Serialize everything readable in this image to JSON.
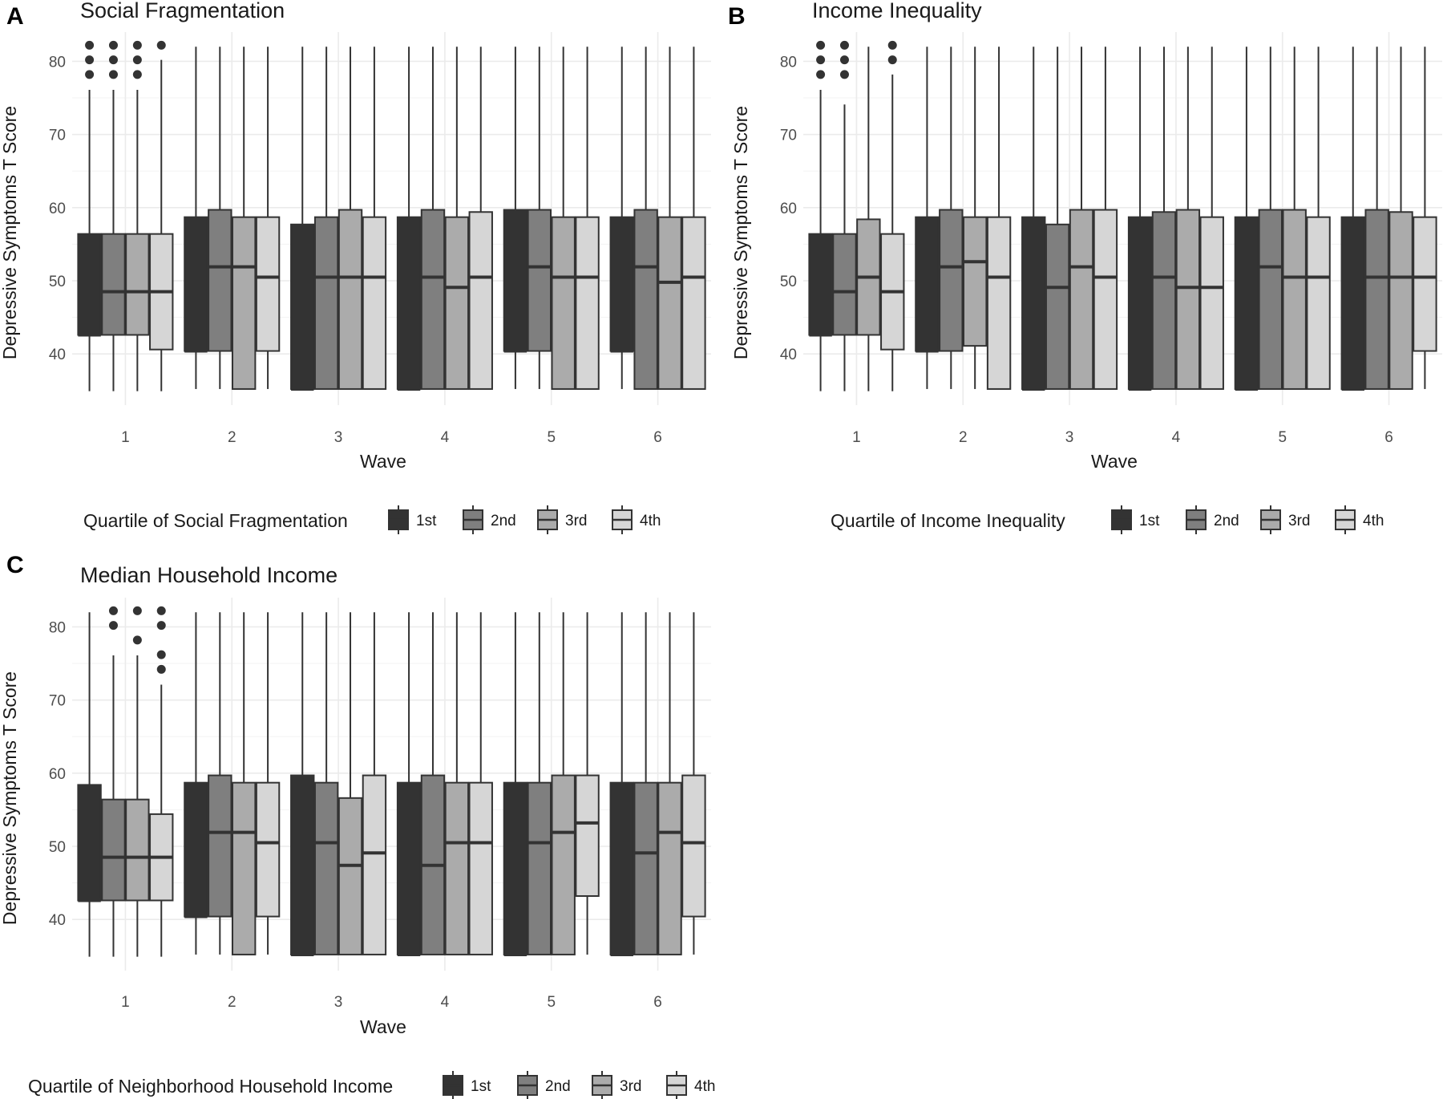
{
  "chart_data": [
    {
      "type": "boxplot",
      "panel": "A",
      "title": "Social Fragmentation",
      "xlabel": "Wave",
      "ylabel": "Depressive Symptoms T Score",
      "categories": [
        "1",
        "2",
        "3",
        "4",
        "5",
        "6"
      ],
      "yticks": [
        40,
        50,
        60,
        70,
        80
      ],
      "ylim": [
        33,
        84
      ],
      "legend_title": "Quartile of Social Fragmentation",
      "grid": true,
      "series": [
        {
          "name": "1st",
          "color": "#333333",
          "boxes": [
            {
              "whisker_low": 34.9,
              "q1": 42.6,
              "median": 42.6,
              "q3": 56.4,
              "whisker_high": 76.1,
              "outliers": [
                78.2,
                80.2,
                82.2
              ]
            },
            {
              "whisker_low": 35.2,
              "q1": 40.4,
              "median": 40.4,
              "q3": 58.7,
              "whisker_high": 82.0,
              "outliers": []
            },
            {
              "whisker_low": 35.2,
              "q1": 35.2,
              "median": 35.2,
              "q3": 57.7,
              "whisker_high": 82.0,
              "outliers": []
            },
            {
              "whisker_low": 35.2,
              "q1": 35.2,
              "median": 35.2,
              "q3": 58.7,
              "whisker_high": 82.0,
              "outliers": []
            },
            {
              "whisker_low": 35.2,
              "q1": 40.4,
              "median": 40.4,
              "q3": 59.7,
              "whisker_high": 82.0,
              "outliers": []
            },
            {
              "whisker_low": 35.2,
              "q1": 40.4,
              "median": 40.4,
              "q3": 58.7,
              "whisker_high": 82.0,
              "outliers": []
            }
          ]
        },
        {
          "name": "2nd",
          "color": "#7f7f7f",
          "boxes": [
            {
              "whisker_low": 34.9,
              "q1": 42.6,
              "median": 48.5,
              "q3": 56.4,
              "whisker_high": 76.1,
              "outliers": [
                78.2,
                80.2,
                82.2
              ]
            },
            {
              "whisker_low": 35.2,
              "q1": 40.4,
              "median": 51.9,
              "q3": 59.7,
              "whisker_high": 82.0,
              "outliers": []
            },
            {
              "whisker_low": 35.2,
              "q1": 35.2,
              "median": 50.5,
              "q3": 58.7,
              "whisker_high": 82.0,
              "outliers": []
            },
            {
              "whisker_low": 35.2,
              "q1": 35.2,
              "median": 50.5,
              "q3": 59.7,
              "whisker_high": 82.0,
              "outliers": []
            },
            {
              "whisker_low": 35.2,
              "q1": 40.4,
              "median": 51.9,
              "q3": 59.7,
              "whisker_high": 82.0,
              "outliers": []
            },
            {
              "whisker_low": 35.2,
              "q1": 35.2,
              "median": 51.9,
              "q3": 59.7,
              "whisker_high": 82.0,
              "outliers": []
            }
          ]
        },
        {
          "name": "3rd",
          "color": "#ababab",
          "boxes": [
            {
              "whisker_low": 34.9,
              "q1": 42.6,
              "median": 48.5,
              "q3": 56.4,
              "whisker_high": 76.1,
              "outliers": [
                78.2,
                80.2,
                82.2
              ]
            },
            {
              "whisker_low": 35.2,
              "q1": 35.2,
              "median": 51.9,
              "q3": 58.7,
              "whisker_high": 82.0,
              "outliers": []
            },
            {
              "whisker_low": 35.2,
              "q1": 35.2,
              "median": 50.5,
              "q3": 59.7,
              "whisker_high": 82.0,
              "outliers": []
            },
            {
              "whisker_low": 35.2,
              "q1": 35.2,
              "median": 49.1,
              "q3": 58.7,
              "whisker_high": 82.0,
              "outliers": []
            },
            {
              "whisker_low": 35.2,
              "q1": 35.2,
              "median": 50.5,
              "q3": 58.7,
              "whisker_high": 82.0,
              "outliers": []
            },
            {
              "whisker_low": 35.2,
              "q1": 35.2,
              "median": 49.8,
              "q3": 58.7,
              "whisker_high": 82.0,
              "outliers": []
            }
          ]
        },
        {
          "name": "4th",
          "color": "#d6d6d6",
          "boxes": [
            {
              "whisker_low": 34.9,
              "q1": 40.6,
              "median": 48.5,
              "q3": 56.4,
              "whisker_high": 80.2,
              "outliers": [
                82.2
              ]
            },
            {
              "whisker_low": 35.2,
              "q1": 40.4,
              "median": 50.5,
              "q3": 58.7,
              "whisker_high": 82.0,
              "outliers": []
            },
            {
              "whisker_low": 35.2,
              "q1": 35.2,
              "median": 50.5,
              "q3": 58.7,
              "whisker_high": 82.0,
              "outliers": []
            },
            {
              "whisker_low": 35.2,
              "q1": 35.2,
              "median": 50.5,
              "q3": 59.4,
              "whisker_high": 82.0,
              "outliers": []
            },
            {
              "whisker_low": 35.2,
              "q1": 35.2,
              "median": 50.5,
              "q3": 58.7,
              "whisker_high": 82.0,
              "outliers": []
            },
            {
              "whisker_low": 35.2,
              "q1": 35.2,
              "median": 50.5,
              "q3": 58.7,
              "whisker_high": 82.0,
              "outliers": []
            }
          ]
        }
      ]
    },
    {
      "type": "boxplot",
      "panel": "B",
      "title": "Income Inequality",
      "xlabel": "Wave",
      "ylabel": "Depressive Symptoms T Score",
      "categories": [
        "1",
        "2",
        "3",
        "4",
        "5",
        "6"
      ],
      "yticks": [
        40,
        50,
        60,
        70,
        80
      ],
      "ylim": [
        33,
        84
      ],
      "legend_title": "Quartile of Income Inequality",
      "grid": true,
      "series": [
        {
          "name": "1st",
          "color": "#333333",
          "boxes": [
            {
              "whisker_low": 34.9,
              "q1": 42.6,
              "median": 42.6,
              "q3": 56.4,
              "whisker_high": 76.1,
              "outliers": [
                78.2,
                80.2,
                82.2
              ]
            },
            {
              "whisker_low": 35.2,
              "q1": 40.4,
              "median": 40.4,
              "q3": 58.7,
              "whisker_high": 82.0,
              "outliers": []
            },
            {
              "whisker_low": 35.2,
              "q1": 35.2,
              "median": 35.2,
              "q3": 58.7,
              "whisker_high": 82.0,
              "outliers": []
            },
            {
              "whisker_low": 35.2,
              "q1": 35.2,
              "median": 35.2,
              "q3": 58.7,
              "whisker_high": 82.0,
              "outliers": []
            },
            {
              "whisker_low": 35.2,
              "q1": 35.2,
              "median": 35.2,
              "q3": 58.7,
              "whisker_high": 82.0,
              "outliers": []
            },
            {
              "whisker_low": 35.2,
              "q1": 35.2,
              "median": 35.2,
              "q3": 58.7,
              "whisker_high": 82.0,
              "outliers": []
            }
          ]
        },
        {
          "name": "2nd",
          "color": "#7f7f7f",
          "boxes": [
            {
              "whisker_low": 34.9,
              "q1": 42.6,
              "median": 48.5,
              "q3": 56.4,
              "whisker_high": 74.1,
              "outliers": [
                78.2,
                80.2,
                82.2
              ]
            },
            {
              "whisker_low": 35.2,
              "q1": 40.4,
              "median": 51.9,
              "q3": 59.7,
              "whisker_high": 82.0,
              "outliers": []
            },
            {
              "whisker_low": 35.2,
              "q1": 35.2,
              "median": 49.1,
              "q3": 57.7,
              "whisker_high": 82.0,
              "outliers": []
            },
            {
              "whisker_low": 35.2,
              "q1": 35.2,
              "median": 50.5,
              "q3": 59.4,
              "whisker_high": 82.0,
              "outliers": []
            },
            {
              "whisker_low": 35.2,
              "q1": 35.2,
              "median": 51.9,
              "q3": 59.7,
              "whisker_high": 82.0,
              "outliers": []
            },
            {
              "whisker_low": 35.2,
              "q1": 35.2,
              "median": 50.5,
              "q3": 59.7,
              "whisker_high": 82.0,
              "outliers": []
            }
          ]
        },
        {
          "name": "3rd",
          "color": "#ababab",
          "boxes": [
            {
              "whisker_low": 34.9,
              "q1": 42.6,
              "median": 50.5,
              "q3": 58.4,
              "whisker_high": 82.0,
              "outliers": []
            },
            {
              "whisker_low": 35.2,
              "q1": 41.1,
              "median": 52.6,
              "q3": 58.7,
              "whisker_high": 82.0,
              "outliers": []
            },
            {
              "whisker_low": 35.2,
              "q1": 35.2,
              "median": 51.9,
              "q3": 59.7,
              "whisker_high": 82.0,
              "outliers": []
            },
            {
              "whisker_low": 35.2,
              "q1": 35.2,
              "median": 49.1,
              "q3": 59.7,
              "whisker_high": 82.0,
              "outliers": []
            },
            {
              "whisker_low": 35.2,
              "q1": 35.2,
              "median": 50.5,
              "q3": 59.7,
              "whisker_high": 82.0,
              "outliers": []
            },
            {
              "whisker_low": 35.2,
              "q1": 35.2,
              "median": 50.5,
              "q3": 59.4,
              "whisker_high": 82.0,
              "outliers": []
            }
          ]
        },
        {
          "name": "4th",
          "color": "#d6d6d6",
          "boxes": [
            {
              "whisker_low": 34.9,
              "q1": 40.6,
              "median": 48.5,
              "q3": 56.4,
              "whisker_high": 78.2,
              "outliers": [
                80.2,
                82.2
              ]
            },
            {
              "whisker_low": 35.2,
              "q1": 35.2,
              "median": 50.5,
              "q3": 58.7,
              "whisker_high": 82.0,
              "outliers": []
            },
            {
              "whisker_low": 35.2,
              "q1": 35.2,
              "median": 50.5,
              "q3": 59.7,
              "whisker_high": 82.0,
              "outliers": []
            },
            {
              "whisker_low": 35.2,
              "q1": 35.2,
              "median": 49.1,
              "q3": 58.7,
              "whisker_high": 82.0,
              "outliers": []
            },
            {
              "whisker_low": 35.2,
              "q1": 35.2,
              "median": 50.5,
              "q3": 58.7,
              "whisker_high": 82.0,
              "outliers": []
            },
            {
              "whisker_low": 35.2,
              "q1": 40.4,
              "median": 50.5,
              "q3": 58.7,
              "whisker_high": 82.0,
              "outliers": []
            }
          ]
        }
      ]
    },
    {
      "type": "boxplot",
      "panel": "C",
      "title": "Median Household Income",
      "xlabel": "Wave",
      "ylabel": "Depressive Symptoms T Score",
      "categories": [
        "1",
        "2",
        "3",
        "4",
        "5",
        "6"
      ],
      "yticks": [
        40,
        50,
        60,
        70,
        80
      ],
      "ylim": [
        33,
        84
      ],
      "legend_title": "Quartile of Neighborhood Household Income",
      "grid": true,
      "series": [
        {
          "name": "1st",
          "color": "#333333",
          "boxes": [
            {
              "whisker_low": 34.9,
              "q1": 42.6,
              "median": 42.6,
              "q3": 58.4,
              "whisker_high": 82.0,
              "outliers": []
            },
            {
              "whisker_low": 35.2,
              "q1": 40.4,
              "median": 40.4,
              "q3": 58.7,
              "whisker_high": 82.0,
              "outliers": []
            },
            {
              "whisker_low": 35.2,
              "q1": 35.2,
              "median": 35.2,
              "q3": 59.7,
              "whisker_high": 82.0,
              "outliers": []
            },
            {
              "whisker_low": 35.2,
              "q1": 35.2,
              "median": 35.2,
              "q3": 58.7,
              "whisker_high": 82.0,
              "outliers": []
            },
            {
              "whisker_low": 35.2,
              "q1": 35.2,
              "median": 35.2,
              "q3": 58.7,
              "whisker_high": 82.0,
              "outliers": []
            },
            {
              "whisker_low": 35.2,
              "q1": 35.2,
              "median": 35.2,
              "q3": 58.7,
              "whisker_high": 82.0,
              "outliers": []
            }
          ]
        },
        {
          "name": "2nd",
          "color": "#7f7f7f",
          "boxes": [
            {
              "whisker_low": 34.9,
              "q1": 42.6,
              "median": 48.5,
              "q3": 56.4,
              "whisker_high": 76.1,
              "outliers": [
                80.2,
                82.2
              ]
            },
            {
              "whisker_low": 35.2,
              "q1": 40.4,
              "median": 51.9,
              "q3": 59.7,
              "whisker_high": 82.0,
              "outliers": []
            },
            {
              "whisker_low": 35.2,
              "q1": 35.2,
              "median": 50.5,
              "q3": 58.7,
              "whisker_high": 82.0,
              "outliers": []
            },
            {
              "whisker_low": 35.2,
              "q1": 35.2,
              "median": 47.4,
              "q3": 59.7,
              "whisker_high": 82.0,
              "outliers": []
            },
            {
              "whisker_low": 35.2,
              "q1": 35.2,
              "median": 50.5,
              "q3": 58.7,
              "whisker_high": 82.0,
              "outliers": []
            },
            {
              "whisker_low": 35.2,
              "q1": 35.2,
              "median": 49.1,
              "q3": 58.7,
              "whisker_high": 82.0,
              "outliers": []
            }
          ]
        },
        {
          "name": "3rd",
          "color": "#ababab",
          "boxes": [
            {
              "whisker_low": 34.9,
              "q1": 42.6,
              "median": 48.5,
              "q3": 56.4,
              "whisker_high": 76.1,
              "outliers": [
                78.2,
                82.2
              ]
            },
            {
              "whisker_low": 35.2,
              "q1": 35.2,
              "median": 51.9,
              "q3": 58.7,
              "whisker_high": 82.0,
              "outliers": []
            },
            {
              "whisker_low": 35.2,
              "q1": 35.2,
              "median": 47.4,
              "q3": 56.6,
              "whisker_high": 82.0,
              "outliers": []
            },
            {
              "whisker_low": 35.2,
              "q1": 35.2,
              "median": 50.5,
              "q3": 58.7,
              "whisker_high": 82.0,
              "outliers": []
            },
            {
              "whisker_low": 35.2,
              "q1": 35.2,
              "median": 51.9,
              "q3": 59.7,
              "whisker_high": 82.0,
              "outliers": []
            },
            {
              "whisker_low": 35.2,
              "q1": 35.2,
              "median": 51.9,
              "q3": 58.7,
              "whisker_high": 82.0,
              "outliers": []
            }
          ]
        },
        {
          "name": "4th",
          "color": "#d6d6d6",
          "boxes": [
            {
              "whisker_low": 34.9,
              "q1": 42.6,
              "median": 48.5,
              "q3": 54.4,
              "whisker_high": 72.1,
              "outliers": [
                74.2,
                76.2,
                80.2,
                82.2
              ]
            },
            {
              "whisker_low": 35.2,
              "q1": 40.4,
              "median": 50.5,
              "q3": 58.7,
              "whisker_high": 82.0,
              "outliers": []
            },
            {
              "whisker_low": 35.2,
              "q1": 35.2,
              "median": 49.1,
              "q3": 59.7,
              "whisker_high": 82.0,
              "outliers": []
            },
            {
              "whisker_low": 35.2,
              "q1": 35.2,
              "median": 50.5,
              "q3": 58.7,
              "whisker_high": 82.0,
              "outliers": []
            },
            {
              "whisker_low": 35.2,
              "q1": 43.2,
              "median": 53.2,
              "q3": 59.7,
              "whisker_high": 82.0,
              "outliers": []
            },
            {
              "whisker_low": 35.2,
              "q1": 40.4,
              "median": 50.5,
              "q3": 59.7,
              "whisker_high": 82.0,
              "outliers": []
            }
          ]
        }
      ]
    }
  ]
}
